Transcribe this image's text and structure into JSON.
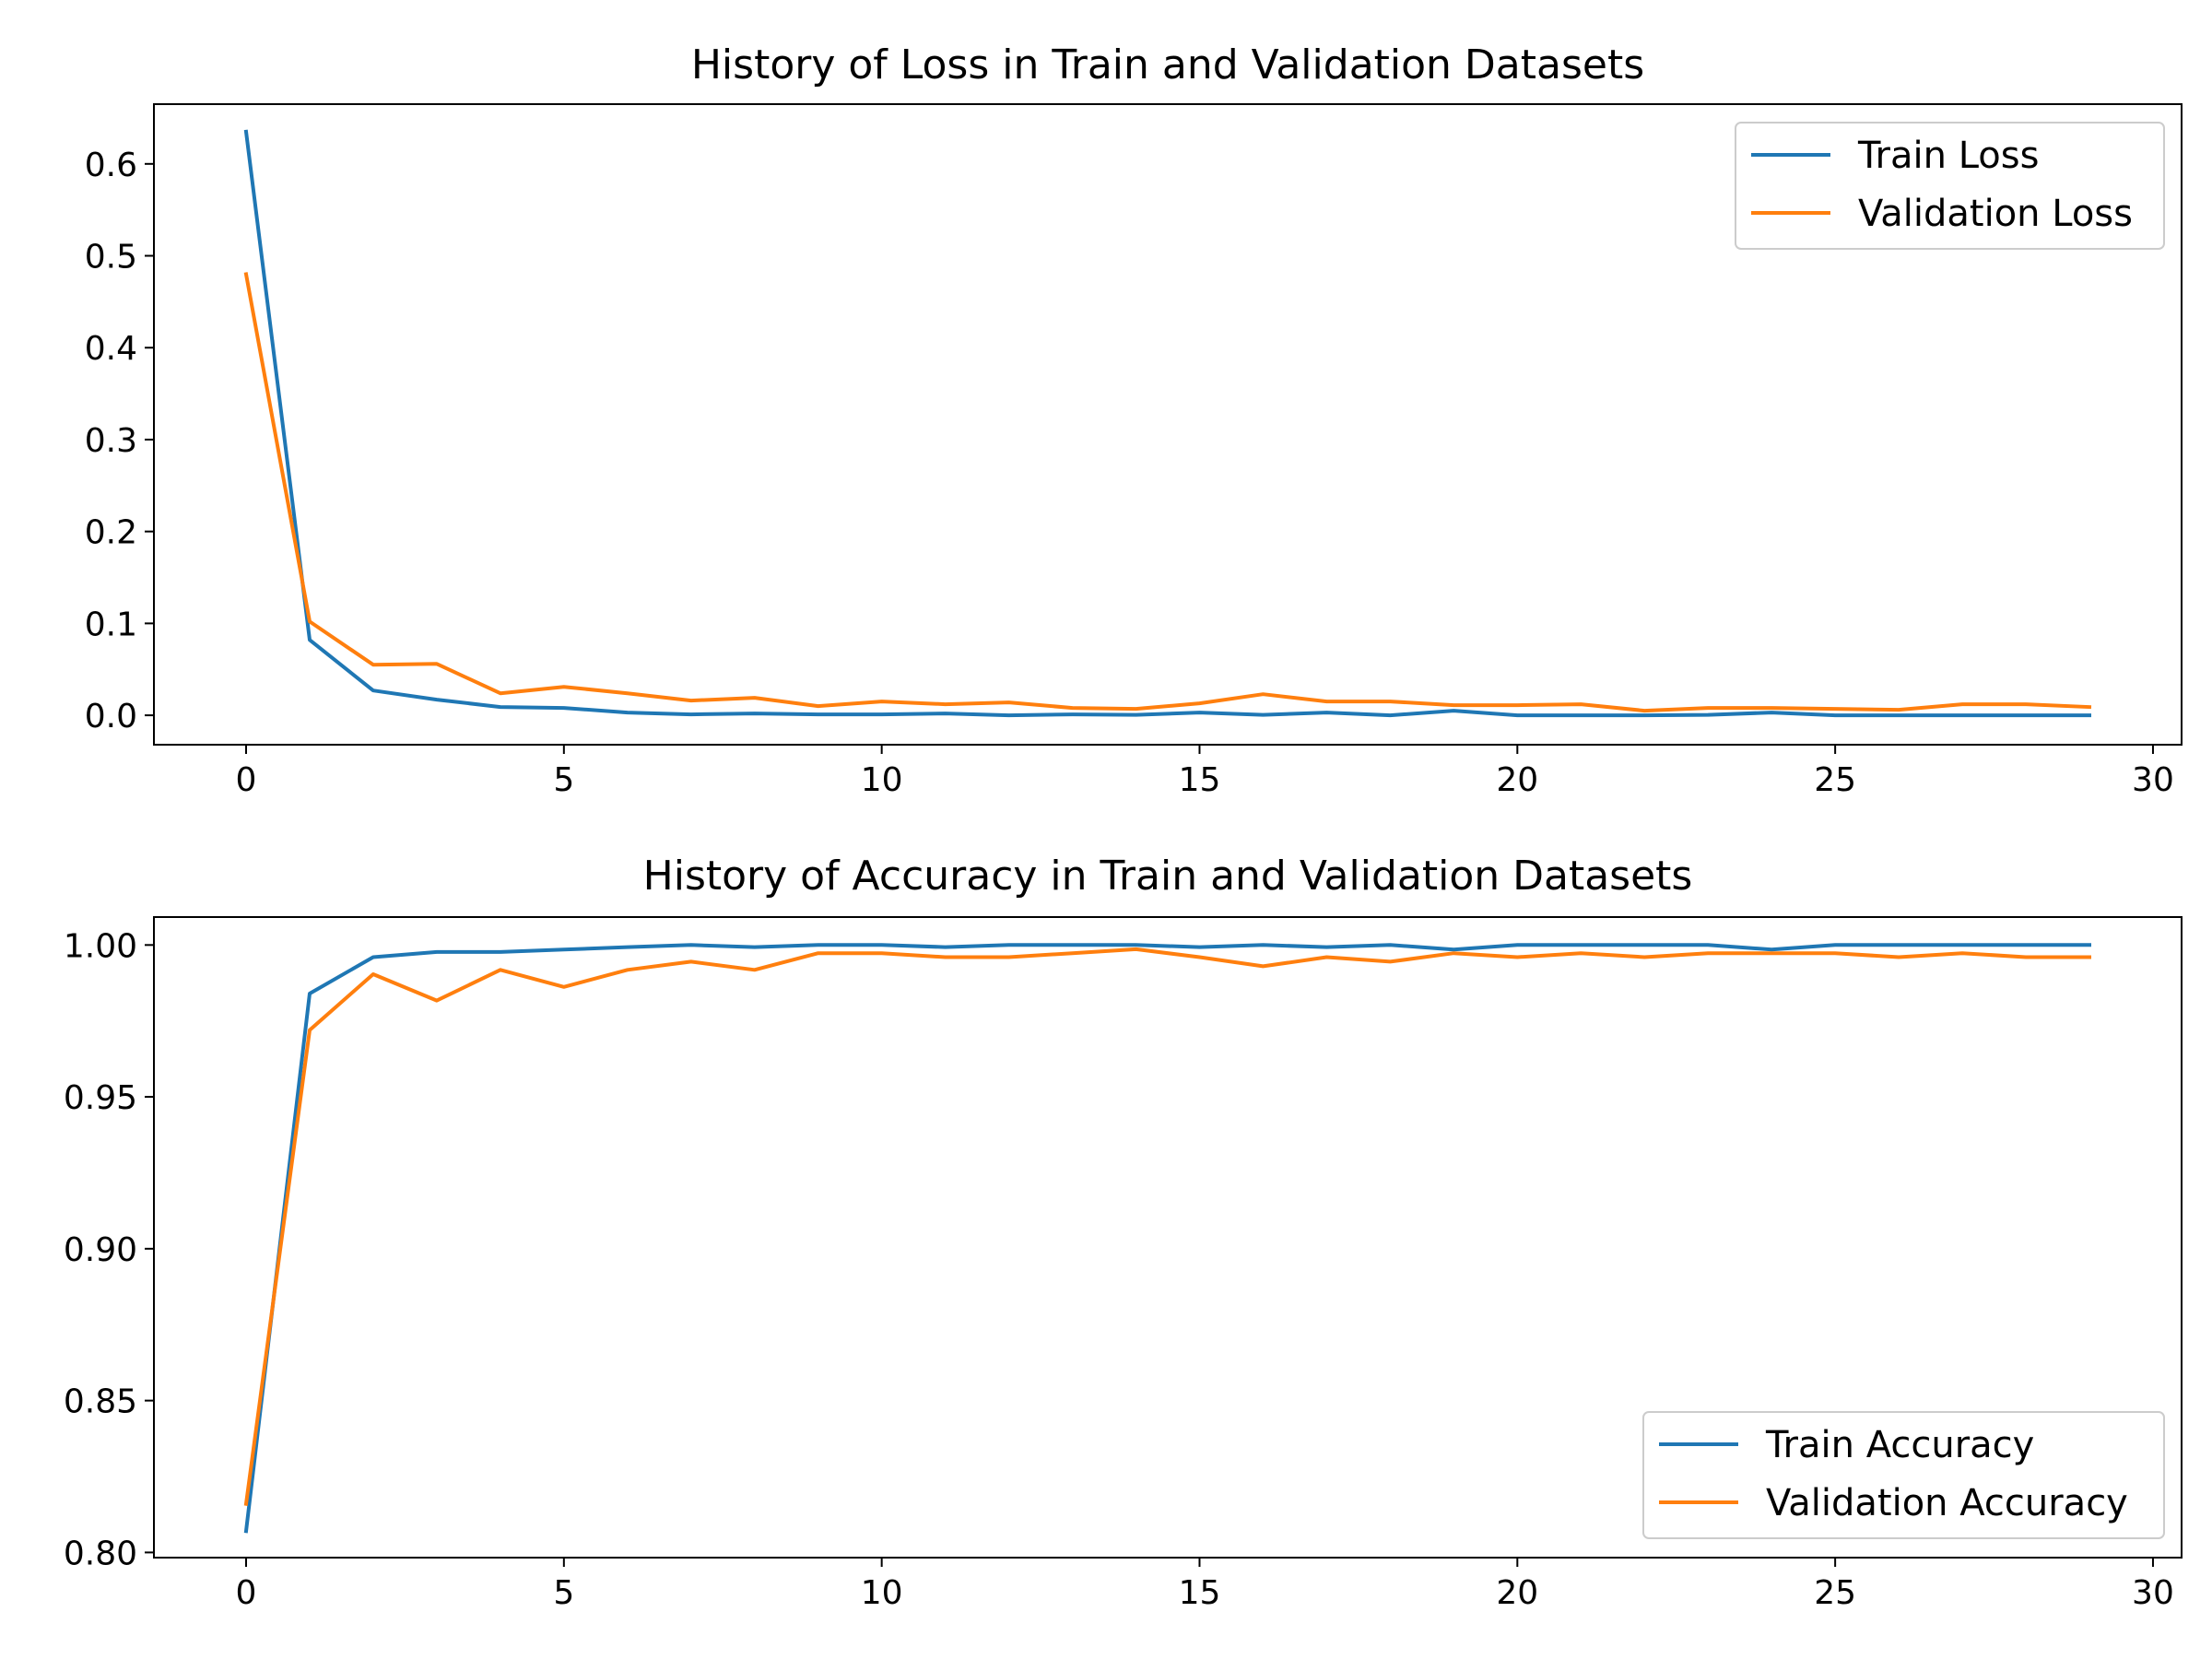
{
  "colors": {
    "train": "#1f77b4",
    "validation": "#ff7f0e",
    "axis": "#000000",
    "background": "#ffffff",
    "legend_border": "#cccccc"
  },
  "chart_data": [
    {
      "type": "line",
      "title": "History of Loss in Train and Validation Datasets",
      "xlabel": "",
      "ylabel": "",
      "xlim": [
        -1.45,
        30.45
      ],
      "ylim": [
        -0.032,
        0.665
      ],
      "x": [
        0,
        1,
        2,
        3,
        4,
        5,
        6,
        7,
        8,
        9,
        10,
        11,
        12,
        13,
        14,
        15,
        16,
        17,
        18,
        19,
        20,
        21,
        22,
        23,
        24,
        25,
        26,
        27,
        28,
        29
      ],
      "xticks": [
        0,
        5,
        10,
        15,
        20,
        25,
        30
      ],
      "xtick_labels": [
        "0",
        "5",
        "10",
        "15",
        "20",
        "25",
        "30"
      ],
      "yticks": [
        0.0,
        0.1,
        0.2,
        0.3,
        0.4,
        0.5,
        0.6
      ],
      "ytick_labels": [
        "0.0",
        "0.1",
        "0.2",
        "0.3",
        "0.4",
        "0.5",
        "0.6"
      ],
      "legend_position": "upper-right",
      "series": [
        {
          "name": "Train Loss",
          "color": "#1f77b4",
          "values": [
            0.635,
            0.082,
            0.027,
            0.017,
            0.009,
            0.008,
            0.003,
            0.001,
            0.002,
            0.001,
            0.001,
            0.002,
            0.0,
            0.001,
            0.0005,
            0.003,
            0.0005,
            0.003,
            0.0,
            0.005,
            0.0,
            0.0,
            0.0,
            0.0005,
            0.003,
            0.0,
            0.0,
            0.0,
            0.0,
            0.0
          ]
        },
        {
          "name": "Validation Loss",
          "color": "#ff7f0e",
          "values": [
            0.48,
            0.102,
            0.055,
            0.056,
            0.024,
            0.031,
            0.024,
            0.016,
            0.019,
            0.01,
            0.015,
            0.012,
            0.014,
            0.008,
            0.007,
            0.013,
            0.023,
            0.015,
            0.015,
            0.011,
            0.011,
            0.012,
            0.005,
            0.008,
            0.008,
            0.007,
            0.006,
            0.012,
            0.012,
            0.009
          ]
        }
      ]
    },
    {
      "type": "line",
      "title": "History of Accuracy in Train and Validation Datasets",
      "xlabel": "",
      "ylabel": "",
      "xlim": [
        -1.45,
        30.45
      ],
      "ylim": [
        0.7983,
        1.0092
      ],
      "x": [
        0,
        1,
        2,
        3,
        4,
        5,
        6,
        7,
        8,
        9,
        10,
        11,
        12,
        13,
        14,
        15,
        16,
        17,
        18,
        19,
        20,
        21,
        22,
        23,
        24,
        25,
        26,
        27,
        28,
        29
      ],
      "xticks": [
        0,
        5,
        10,
        15,
        20,
        25,
        30
      ],
      "xtick_labels": [
        "0",
        "5",
        "10",
        "15",
        "20",
        "25",
        "30"
      ],
      "yticks": [
        0.8,
        0.85,
        0.9,
        0.95,
        1.0
      ],
      "ytick_labels": [
        "0.80",
        "0.85",
        "0.90",
        "0.95",
        "1.00"
      ],
      "legend_position": "lower-right",
      "series": [
        {
          "name": "Train Accuracy",
          "color": "#1f77b4",
          "values": [
            0.807,
            0.984,
            0.996,
            0.9977,
            0.9977,
            0.9985,
            0.9993,
            1.0,
            0.9993,
            1.0,
            1.0,
            0.9993,
            1.0,
            1.0,
            1.0,
            0.9993,
            1.0,
            0.9993,
            1.0,
            0.9985,
            1.0,
            1.0,
            1.0,
            1.0,
            0.9985,
            1.0,
            1.0,
            1.0,
            1.0,
            1.0
          ]
        },
        {
          "name": "Validation Accuracy",
          "color": "#ff7f0e",
          "values": [
            0.816,
            0.972,
            0.9904,
            0.9817,
            0.9918,
            0.9862,
            0.9918,
            0.9945,
            0.9918,
            0.9973,
            0.9973,
            0.996,
            0.996,
            0.9973,
            0.9986,
            0.996,
            0.993,
            0.996,
            0.9945,
            0.9973,
            0.996,
            0.9973,
            0.996,
            0.9973,
            0.9973,
            0.9973,
            0.996,
            0.9973,
            0.996,
            0.996
          ]
        }
      ]
    }
  ]
}
